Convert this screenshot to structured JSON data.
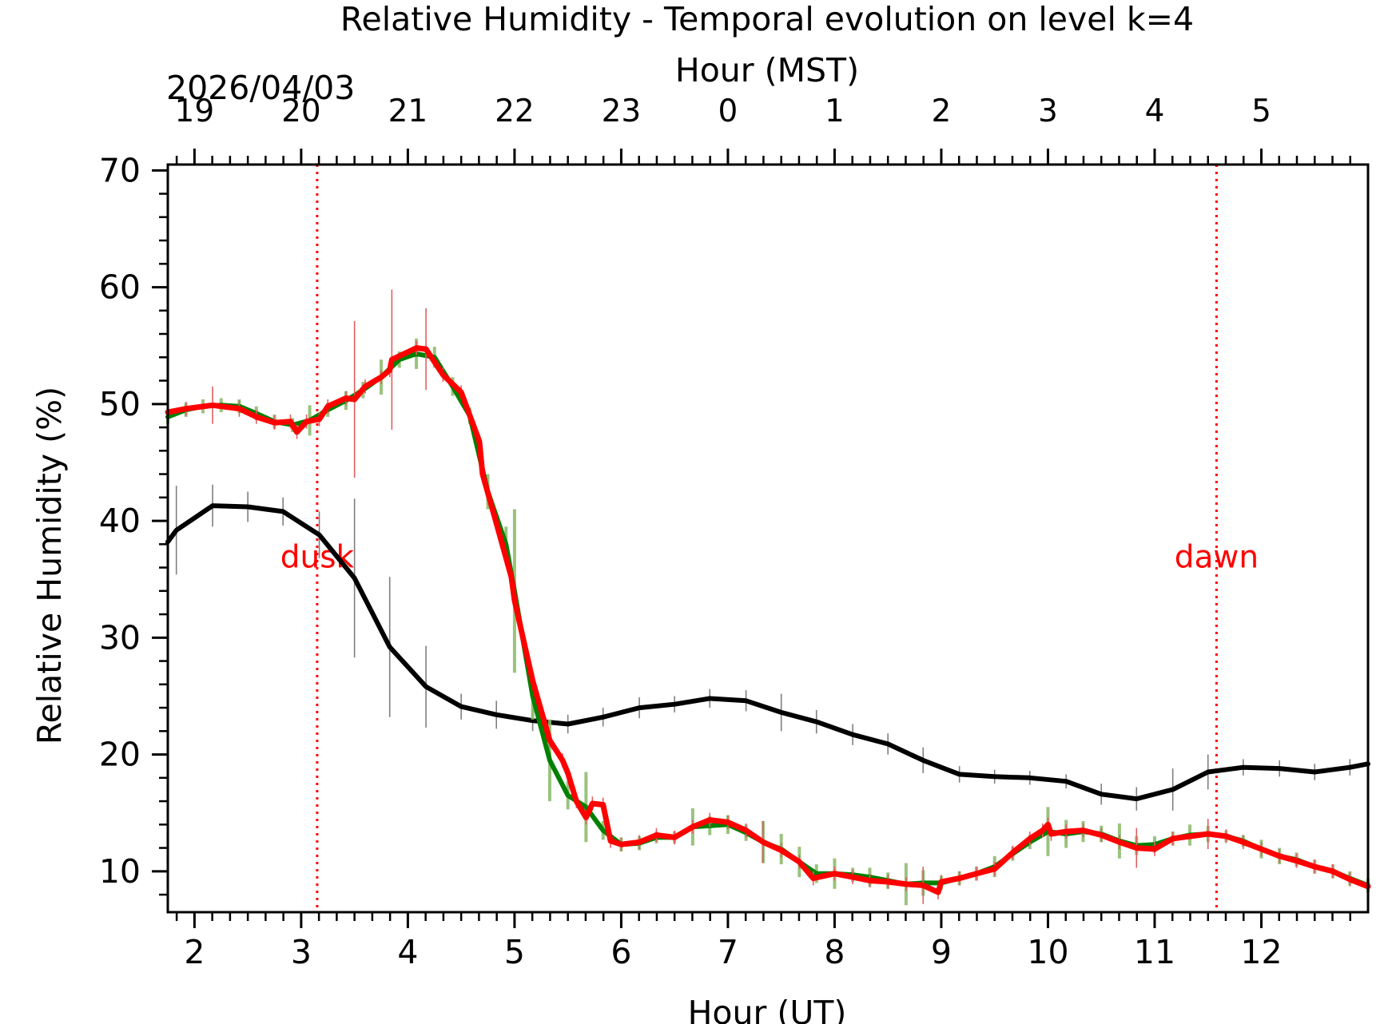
{
  "chart_data": {
    "type": "line",
    "title": "Relative Humidity - Temporal evolution on level k=4",
    "xlabel": "Hour (UT)",
    "ylabel": "Relative Humidity (%)",
    "top_xlabel": "Hour (MST)",
    "date_label": "2026/04/03",
    "xlim": [
      1.75,
      13.0
    ],
    "ylim": [
      6.5,
      70.5
    ],
    "grid": false,
    "x_ticks": [
      2,
      3,
      4,
      5,
      6,
      7,
      8,
      9,
      10,
      11,
      12
    ],
    "y_ticks": [
      10,
      20,
      30,
      40,
      50,
      60,
      70
    ],
    "top_ticks": [
      {
        "ut": 2,
        "label": "19"
      },
      {
        "ut": 3,
        "label": "20"
      },
      {
        "ut": 4,
        "label": "21"
      },
      {
        "ut": 5,
        "label": "22"
      },
      {
        "ut": 6,
        "label": "23"
      },
      {
        "ut": 7,
        "label": "0"
      },
      {
        "ut": 8,
        "label": "1"
      },
      {
        "ut": 9,
        "label": "2"
      },
      {
        "ut": 10,
        "label": "3"
      },
      {
        "ut": 11,
        "label": "4"
      },
      {
        "ut": 12,
        "label": "5"
      }
    ],
    "events": [
      {
        "label": "dusk",
        "x": 3.15,
        "color": "#ff0000"
      },
      {
        "label": "dawn",
        "x": 11.58,
        "color": "#ff0000"
      }
    ],
    "series": [
      {
        "name": "black",
        "color": "#000000",
        "errcolor": "#7f7f7f",
        "points": [
          [
            1.75,
            38.2,
            3.8
          ],
          [
            1.83,
            39.2,
            3.8
          ],
          [
            2.17,
            41.3,
            1.8
          ],
          [
            2.5,
            41.2,
            1.3
          ],
          [
            2.83,
            40.8,
            1.2
          ],
          [
            3.17,
            38.8,
            2.0
          ],
          [
            3.5,
            35.1,
            6.8
          ],
          [
            3.83,
            29.2,
            6.0
          ],
          [
            4.17,
            25.8,
            3.5
          ],
          [
            4.5,
            24.1,
            1.1
          ],
          [
            4.83,
            23.4,
            1.2
          ],
          [
            5.17,
            22.9,
            0.9
          ],
          [
            5.5,
            22.6,
            0.8
          ],
          [
            5.83,
            23.2,
            0.8
          ],
          [
            6.17,
            24.0,
            0.9
          ],
          [
            6.5,
            24.3,
            0.7
          ],
          [
            6.83,
            24.8,
            0.8
          ],
          [
            7.17,
            24.6,
            0.9
          ],
          [
            7.5,
            23.6,
            1.6
          ],
          [
            7.83,
            22.8,
            1.0
          ],
          [
            8.17,
            21.7,
            0.9
          ],
          [
            8.5,
            20.9,
            0.9
          ],
          [
            8.83,
            19.5,
            1.1
          ],
          [
            9.17,
            18.3,
            0.7
          ],
          [
            9.5,
            18.1,
            0.6
          ],
          [
            9.83,
            18.0,
            0.6
          ],
          [
            10.17,
            17.7,
            0.6
          ],
          [
            10.5,
            16.6,
            0.9
          ],
          [
            10.83,
            16.2,
            1.0
          ],
          [
            11.17,
            17.0,
            1.8
          ],
          [
            11.5,
            18.5,
            1.5
          ],
          [
            11.83,
            18.9,
            0.7
          ],
          [
            12.17,
            18.8,
            0.7
          ],
          [
            12.5,
            18.5,
            0.7
          ],
          [
            12.83,
            18.9,
            0.7
          ],
          [
            13.0,
            19.2,
            0.7
          ]
        ]
      },
      {
        "name": "green",
        "color": "#008000",
        "errcolor": "#8fbc70",
        "points": [
          [
            1.75,
            48.9,
            0.6
          ],
          [
            1.92,
            49.5,
            0.6
          ],
          [
            2.08,
            49.8,
            0.6
          ],
          [
            2.25,
            49.9,
            0.6
          ],
          [
            2.42,
            49.8,
            0.6
          ],
          [
            2.58,
            49.2,
            0.6
          ],
          [
            2.75,
            48.5,
            0.6
          ],
          [
            2.92,
            48.2,
            0.6
          ],
          [
            3.08,
            48.6,
            1.3
          ],
          [
            3.25,
            49.5,
            0.6
          ],
          [
            3.42,
            50.3,
            0.8
          ],
          [
            3.58,
            51.2,
            0.7
          ],
          [
            3.75,
            52.3,
            1.5
          ],
          [
            3.92,
            53.8,
            0.7
          ],
          [
            4.08,
            54.3,
            1.3
          ],
          [
            4.25,
            54.0,
            0.9
          ],
          [
            4.42,
            51.5,
            0.8
          ],
          [
            4.58,
            49.0,
            0.7
          ],
          [
            4.75,
            42.5,
            1.5
          ],
          [
            4.92,
            38.0,
            1.5
          ],
          [
            5.0,
            34.0,
            7.0
          ],
          [
            5.17,
            25.0,
            2.0
          ],
          [
            5.33,
            19.5,
            3.5
          ],
          [
            5.5,
            16.5,
            1.2
          ],
          [
            5.67,
            15.5,
            3.0
          ],
          [
            5.83,
            13.5,
            0.8
          ],
          [
            6.0,
            12.3,
            0.6
          ],
          [
            6.17,
            12.4,
            0.6
          ],
          [
            6.33,
            12.9,
            0.5
          ],
          [
            6.5,
            12.9,
            0.5
          ],
          [
            6.67,
            13.8,
            1.6
          ],
          [
            6.83,
            13.9,
            0.8
          ],
          [
            7.0,
            14.0,
            0.8
          ],
          [
            7.17,
            13.3,
            0.7
          ],
          [
            7.33,
            12.5,
            1.8
          ],
          [
            7.5,
            11.9,
            1.3
          ],
          [
            7.67,
            10.8,
            1.3
          ],
          [
            7.83,
            9.8,
            0.8
          ],
          [
            8.0,
            9.8,
            1.3
          ],
          [
            8.17,
            9.7,
            0.6
          ],
          [
            8.33,
            9.5,
            0.8
          ],
          [
            8.5,
            9.2,
            0.7
          ],
          [
            8.67,
            8.9,
            1.8
          ],
          [
            8.83,
            9.0,
            1.1
          ],
          [
            9.0,
            9.0,
            0.6
          ],
          [
            9.17,
            9.4,
            0.6
          ],
          [
            9.33,
            9.8,
            0.6
          ],
          [
            9.5,
            10.4,
            0.9
          ],
          [
            9.67,
            11.5,
            0.6
          ],
          [
            9.83,
            12.5,
            0.6
          ],
          [
            10.0,
            13.4,
            2.1
          ],
          [
            10.17,
            13.2,
            1.2
          ],
          [
            10.33,
            13.4,
            0.9
          ],
          [
            10.5,
            13.2,
            0.7
          ],
          [
            10.67,
            12.6,
            1.5
          ],
          [
            10.83,
            12.2,
            0.8
          ],
          [
            11.0,
            12.3,
            0.7
          ],
          [
            11.17,
            12.8,
            0.6
          ],
          [
            11.33,
            13.1,
            0.9
          ],
          [
            11.5,
            13.2,
            0.7
          ],
          [
            11.67,
            13.0,
            0.5
          ],
          [
            11.83,
            12.6,
            0.5
          ],
          [
            12.0,
            11.9,
            0.8
          ],
          [
            12.17,
            11.3,
            0.7
          ],
          [
            12.33,
            11.0,
            0.6
          ],
          [
            12.5,
            10.4,
            0.6
          ],
          [
            12.67,
            10.0,
            0.6
          ],
          [
            12.83,
            9.4,
            0.6
          ],
          [
            13.0,
            8.8,
            0.6
          ]
        ]
      },
      {
        "name": "red",
        "color": "#ff0000",
        "errcolor": "#e06060",
        "points": [
          [
            1.75,
            49.3,
            3.8
          ],
          [
            1.92,
            49.6,
            0.6
          ],
          [
            2.17,
            49.9,
            1.6
          ],
          [
            2.42,
            49.6,
            0.7
          ],
          [
            2.58,
            48.9,
            0.6
          ],
          [
            2.75,
            48.4,
            0.6
          ],
          [
            2.9,
            48.5,
            0.6
          ],
          [
            2.96,
            47.6,
            0.6
          ],
          [
            3.05,
            48.5,
            0.6
          ],
          [
            3.17,
            48.7,
            0.6
          ],
          [
            3.25,
            49.8,
            0.6
          ],
          [
            3.42,
            50.5,
            0.6
          ],
          [
            3.5,
            50.4,
            6.7
          ],
          [
            3.6,
            51.5,
            0.6
          ],
          [
            3.75,
            52.3,
            0.6
          ],
          [
            3.83,
            52.9,
            0.6
          ],
          [
            3.85,
            53.8,
            6.0
          ],
          [
            4.08,
            54.8,
            0.6
          ],
          [
            4.17,
            54.7,
            3.5
          ],
          [
            4.33,
            52.5,
            0.6
          ],
          [
            4.5,
            51.0,
            0.6
          ],
          [
            4.67,
            46.8,
            0.6
          ],
          [
            4.7,
            44.0,
            0.6
          ],
          [
            4.83,
            39.8,
            0.6
          ],
          [
            4.97,
            35.2,
            0.6
          ],
          [
            5.0,
            33.2,
            0.6
          ],
          [
            5.17,
            26.3,
            0.6
          ],
          [
            5.33,
            21.2,
            0.6
          ],
          [
            5.45,
            19.5,
            0.6
          ],
          [
            5.5,
            18.4,
            0.6
          ],
          [
            5.58,
            16.0,
            0.6
          ],
          [
            5.67,
            14.6,
            0.6
          ],
          [
            5.73,
            15.8,
            0.6
          ],
          [
            5.83,
            15.7,
            0.6
          ],
          [
            5.9,
            12.6,
            0.6
          ],
          [
            6.0,
            12.3,
            0.6
          ],
          [
            6.17,
            12.5,
            0.6
          ],
          [
            6.33,
            13.1,
            0.6
          ],
          [
            6.5,
            12.9,
            0.6
          ],
          [
            6.67,
            13.8,
            0.6
          ],
          [
            6.83,
            14.4,
            0.6
          ],
          [
            7.0,
            14.2,
            0.6
          ],
          [
            7.17,
            13.5,
            0.6
          ],
          [
            7.33,
            12.5,
            1.8
          ],
          [
            7.5,
            11.8,
            0.6
          ],
          [
            7.67,
            10.8,
            0.6
          ],
          [
            7.8,
            9.4,
            0.6
          ],
          [
            8.0,
            9.8,
            0.6
          ],
          [
            8.17,
            9.5,
            0.6
          ],
          [
            8.33,
            9.2,
            0.6
          ],
          [
            8.5,
            9.1,
            0.6
          ],
          [
            8.67,
            8.9,
            0.6
          ],
          [
            8.83,
            8.8,
            1.6
          ],
          [
            8.97,
            8.2,
            0.6
          ],
          [
            9.0,
            9.1,
            0.6
          ],
          [
            9.17,
            9.4,
            0.6
          ],
          [
            9.33,
            9.8,
            0.6
          ],
          [
            9.5,
            10.2,
            0.6
          ],
          [
            9.67,
            11.6,
            0.6
          ],
          [
            9.83,
            12.8,
            0.6
          ],
          [
            9.95,
            13.5,
            0.6
          ],
          [
            10.0,
            14.0,
            0.6
          ],
          [
            10.03,
            13.2,
            0.6
          ],
          [
            10.17,
            13.4,
            0.6
          ],
          [
            10.33,
            13.5,
            0.6
          ],
          [
            10.5,
            13.1,
            0.6
          ],
          [
            10.67,
            12.5,
            0.6
          ],
          [
            10.83,
            12.0,
            1.7
          ],
          [
            11.0,
            11.9,
            0.6
          ],
          [
            11.17,
            12.8,
            0.6
          ],
          [
            11.5,
            13.2,
            1.3
          ],
          [
            11.67,
            13.0,
            0.6
          ],
          [
            11.83,
            12.5,
            0.6
          ],
          [
            12.0,
            11.9,
            0.6
          ],
          [
            12.17,
            11.3,
            0.6
          ],
          [
            12.33,
            10.9,
            0.6
          ],
          [
            12.5,
            10.4,
            0.6
          ],
          [
            12.67,
            10.0,
            0.6
          ],
          [
            12.83,
            9.3,
            0.6
          ],
          [
            13.0,
            8.7,
            0.6
          ]
        ]
      }
    ]
  }
}
